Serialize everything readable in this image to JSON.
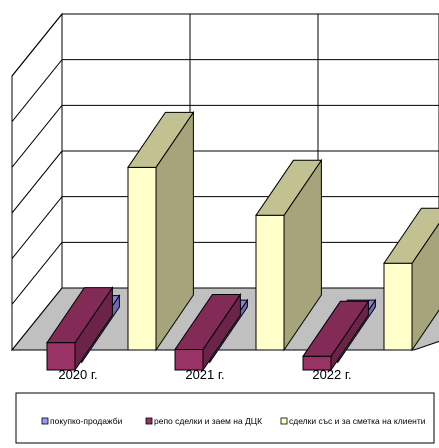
{
  "chart_data": {
    "type": "bar",
    "three_d": true,
    "categories": [
      "2020 г.",
      "2021 г.",
      "2022 г."
    ],
    "series": [
      {
        "name": "покупко-продажби",
        "values": [
          0.25,
          0.15,
          0.15
        ],
        "color": "#9999ff"
      },
      {
        "name": "репо сделки и заем на ДЦК",
        "values": [
          0.6,
          0.45,
          0.3
        ],
        "color": "#993366"
      },
      {
        "name": "сделки със и за сметка на клиенти",
        "values": [
          4.0,
          2.95,
          1.9
        ],
        "color": "#ffffcc"
      }
    ],
    "ylim": [
      0,
      6
    ],
    "grid": true,
    "legend_position": "bottom",
    "title": "",
    "xlabel": "",
    "ylabel": ""
  }
}
